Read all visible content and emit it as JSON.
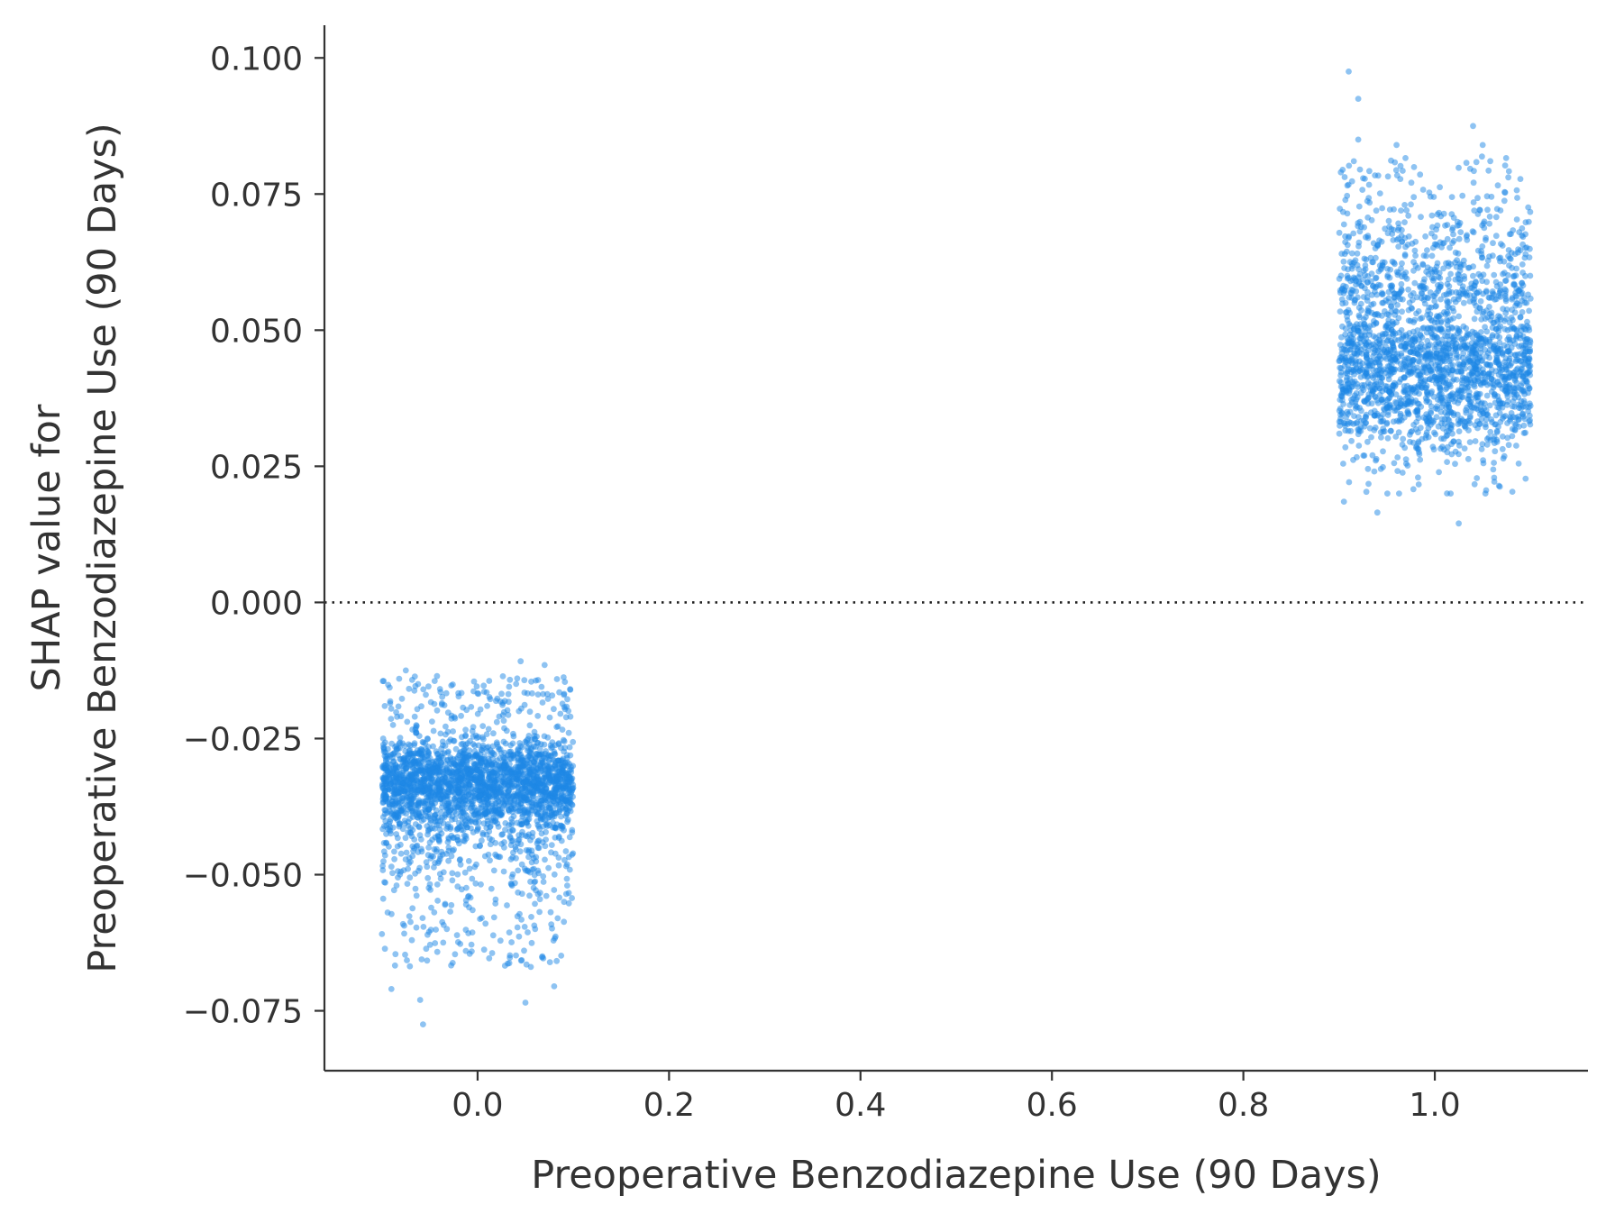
{
  "chart_data": {
    "type": "scatter",
    "title": "",
    "xlabel": "Preoperative Benzodiazepine Use (90 Days)",
    "ylabel_lines": [
      "SHAP value for",
      "Preoperative Benzodiazepine Use (90 Days)"
    ],
    "xlim": [
      -0.16,
      1.16
    ],
    "ylim": [
      -0.086,
      0.106
    ],
    "x_ticks": [
      0.0,
      0.2,
      0.4,
      0.6,
      0.8,
      1.0
    ],
    "x_tick_labels": [
      "0.0",
      "0.2",
      "0.4",
      "0.6",
      "0.8",
      "1.0"
    ],
    "y_ticks": [
      0.1,
      0.075,
      0.05,
      0.025,
      0.0,
      -0.025,
      -0.05,
      -0.075
    ],
    "y_tick_labels": [
      "0.100",
      "0.075",
      "0.050",
      "0.025",
      "0.000",
      "−0.025",
      "−0.050",
      "−0.075"
    ],
    "reference_line": {
      "y": 0.0,
      "style": "dotted"
    },
    "grid": false,
    "legend": "none",
    "point_color": "#1e88e5",
    "clusters": [
      {
        "name": "",
        "x_center": 0.0,
        "x_jitter": [
          -0.1,
          0.1
        ],
        "y_mean": -0.033,
        "y_core_range": [
          -0.04,
          -0.025
        ],
        "y_range": [
          -0.078,
          -0.011
        ],
        "outliers": [
          {
            "x": -0.057,
            "y": -0.0775
          },
          {
            "x": -0.06,
            "y": -0.073
          },
          {
            "x": 0.05,
            "y": -0.0735
          },
          {
            "x": -0.09,
            "y": -0.071
          },
          {
            "x": 0.08,
            "y": -0.0705
          },
          {
            "x": 0.045,
            "y": -0.0108
          },
          {
            "x": 0.07,
            "y": -0.0115
          },
          {
            "x": -0.075,
            "y": -0.0125
          }
        ]
      },
      {
        "name": "",
        "x_center": 1.0,
        "x_jitter": [
          -0.1,
          0.1
        ],
        "y_mean": 0.043,
        "y_core_range": [
          0.033,
          0.055
        ],
        "y_range": [
          0.014,
          0.098
        ],
        "outliers": [
          {
            "x": 0.91,
            "y": 0.0975
          },
          {
            "x": 0.92,
            "y": 0.0925
          },
          {
            "x": 1.04,
            "y": 0.0875
          },
          {
            "x": 0.92,
            "y": 0.085
          },
          {
            "x": 1.05,
            "y": 0.084
          },
          {
            "x": 0.96,
            "y": 0.084
          },
          {
            "x": 1.025,
            "y": 0.0145
          },
          {
            "x": 0.94,
            "y": 0.0165
          },
          {
            "x": 0.905,
            "y": 0.0185
          }
        ]
      }
    ]
  }
}
